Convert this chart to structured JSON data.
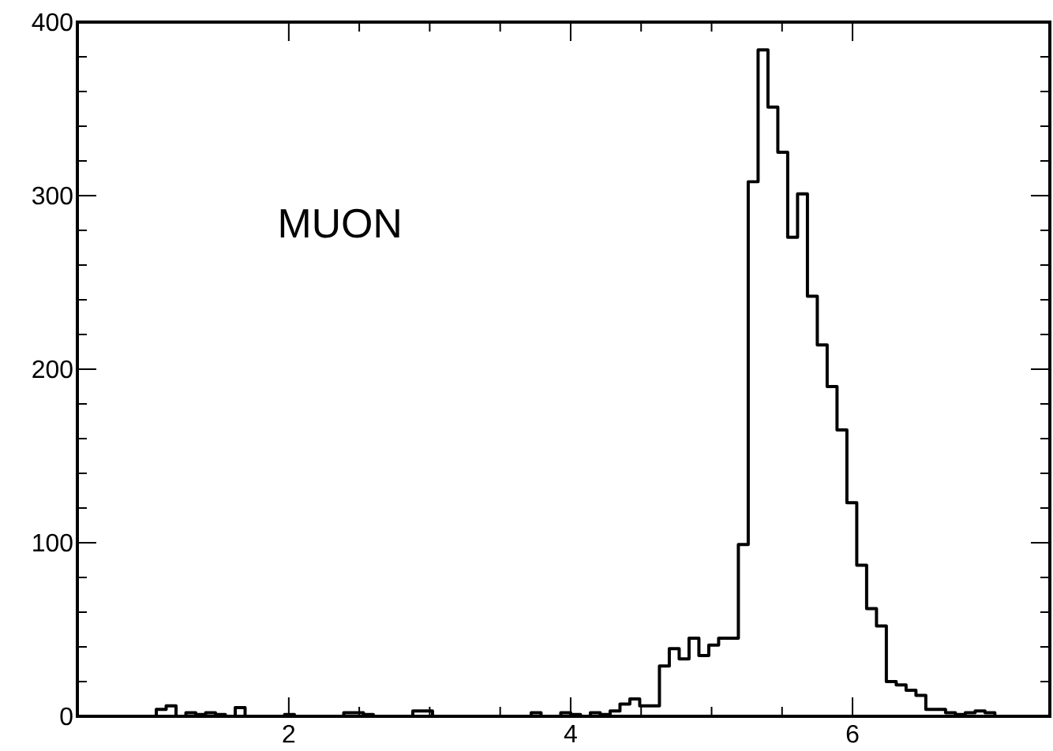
{
  "chart_data": {
    "type": "histogram",
    "annotations": [
      "MUON"
    ],
    "bins": [
      0.5,
      0.57,
      0.64,
      0.71,
      0.78,
      0.85,
      0.92,
      0.99,
      1.06,
      1.13,
      1.2,
      1.27,
      1.34,
      1.41,
      1.48,
      1.55,
      1.62,
      1.69,
      1.76,
      1.83,
      1.9,
      1.97,
      2.04,
      2.11,
      2.18,
      2.25,
      2.32,
      2.39,
      2.46,
      2.53,
      2.6,
      2.67,
      2.74,
      2.81,
      2.88,
      2.95,
      3.02,
      3.09,
      3.16,
      3.23,
      3.3,
      3.37,
      3.44,
      3.51,
      3.58,
      3.65,
      3.72,
      3.79,
      3.86,
      3.93,
      4.0,
      4.07,
      4.14,
      4.21,
      4.28,
      4.35,
      4.42,
      4.49,
      4.56,
      4.63,
      4.7,
      4.77,
      4.84,
      4.91,
      4.98,
      5.05,
      5.12,
      5.19,
      5.26,
      5.33,
      5.4,
      5.47,
      5.54,
      5.61,
      5.68,
      5.75,
      5.82,
      5.89,
      5.96,
      6.03,
      6.1,
      6.17,
      6.24,
      6.31,
      6.38,
      6.45,
      6.52,
      6.59,
      6.66,
      6.73,
      6.8,
      6.87,
      6.94,
      7.01,
      7.08,
      7.15,
      7.22,
      7.29,
      7.36
    ],
    "values": [
      0,
      0,
      0,
      0,
      0,
      0,
      0,
      0,
      4,
      6,
      0,
      2,
      1,
      2,
      1,
      0,
      5,
      0,
      0,
      0,
      0,
      1,
      0,
      0,
      0,
      0,
      0,
      2,
      2,
      1,
      0,
      0,
      0,
      0,
      3,
      3,
      0,
      0,
      0,
      0,
      0,
      0,
      0,
      0,
      0,
      0,
      2,
      0,
      0,
      2,
      1,
      0,
      2,
      1,
      3,
      7,
      10,
      6,
      6,
      29,
      39,
      33,
      45,
      35,
      41,
      45,
      45,
      99,
      308,
      384,
      351,
      325,
      276,
      301,
      242,
      214,
      190,
      165,
      123,
      87,
      62,
      52,
      20,
      18,
      15,
      12,
      4,
      4,
      2,
      1,
      2,
      3,
      2,
      0,
      0,
      0,
      0,
      0
    ],
    "xlim": [
      0.5,
      7.4
    ],
    "ylim": [
      0,
      400
    ],
    "xticks": [
      2,
      4,
      6
    ],
    "yticks": [
      0,
      100,
      200,
      300,
      400
    ],
    "color": "#000000"
  }
}
